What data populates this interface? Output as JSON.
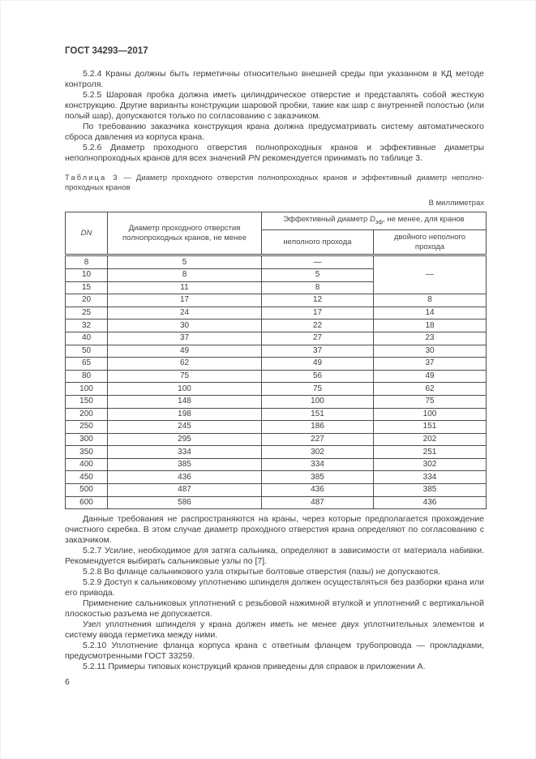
{
  "header": {
    "title": "ГОСТ 34293—2017"
  },
  "paragraphs_top": [
    "5.2.4 Краны должны быть герметичны относительно внешней среды при указанном в КД методе контроля.",
    "5.2.5 Шаровая пробка должна иметь цилиндрическое отверстие и представлять собой жесткую конструкцию. Другие варианты конструкции шаровой пробки, такие как шар с внутренней полостью (или полый шар), допускаются только по согласованию с заказчиком.",
    "По требованию заказчика конструкция крана должна предусматривать систему автоматического сброса давления из корпуса крана."
  ],
  "para_526": {
    "before": "5.2.6 Диаметр проходного отверстия полнопроходных кранов и эффективные диаметры неполнопроходных кранов для всех значений ",
    "italic": "PN",
    "after": " рекомендуется принимать по таблице 3."
  },
  "table": {
    "caption_label": "Таблица 3",
    "caption_sep": " — ",
    "caption_text": "Диаметр проходного отверстия полнопроходных кранов и эффективный диаметр неполно­проходных кранов",
    "units": "В миллиметрах",
    "headers": {
      "dn": "DN",
      "full_bore": "Диаметр проходного отверстия полнопроходных кранов, не менее",
      "eff_prefix": "Эффективный диаметр ",
      "eff_d": "D",
      "eff_sub": "эф",
      "eff_suffix": ", не менее, для кранов",
      "single_pass": "неполного прохода",
      "double_pass": "двойного неполного прохода"
    },
    "merged_double": {
      "value": "—",
      "rowspan": 3
    },
    "rows": [
      {
        "dn": "8",
        "bore": "5",
        "single": "—"
      },
      {
        "dn": "10",
        "bore": "8",
        "single": "5"
      },
      {
        "dn": "15",
        "bore": "11",
        "single": "8"
      },
      {
        "dn": "20",
        "bore": "17",
        "single": "12",
        "double": "8"
      },
      {
        "dn": "25",
        "bore": "24",
        "single": "17",
        "double": "14"
      },
      {
        "dn": "32",
        "bore": "30",
        "single": "22",
        "double": "18"
      },
      {
        "dn": "40",
        "bore": "37",
        "single": "27",
        "double": "23"
      },
      {
        "dn": "50",
        "bore": "49",
        "single": "37",
        "double": "30"
      },
      {
        "dn": "65",
        "bore": "62",
        "single": "49",
        "double": "37"
      },
      {
        "dn": "80",
        "bore": "75",
        "single": "56",
        "double": "49"
      },
      {
        "dn": "100",
        "bore": "100",
        "single": "75",
        "double": "62"
      },
      {
        "dn": "150",
        "bore": "148",
        "single": "100",
        "double": "75"
      },
      {
        "dn": "200",
        "bore": "198",
        "single": "151",
        "double": "100"
      },
      {
        "dn": "250",
        "bore": "245",
        "single": "186",
        "double": "151"
      },
      {
        "dn": "300",
        "bore": "295",
        "single": "227",
        "double": "202"
      },
      {
        "dn": "350",
        "bore": "334",
        "single": "302",
        "double": "251"
      },
      {
        "dn": "400",
        "bore": "385",
        "single": "334",
        "double": "302"
      },
      {
        "dn": "450",
        "bore": "436",
        "single": "385",
        "double": "334"
      },
      {
        "dn": "500",
        "bore": "487",
        "single": "436",
        "double": "385"
      },
      {
        "dn": "600",
        "bore": "586",
        "single": "487",
        "double": "436"
      }
    ]
  },
  "paragraphs_bottom": [
    "Данные требования не распространяются на краны, через которые предполагается прохождение очистного скребка. В этом случае диаметр проходного отверстия крана определяют по согласованию с заказчиком.",
    "5.2.7 Усилие, необходимое для затяга сальника, определяют в зависимости от материала набивки. Рекомендуется выбирать сальниковые узлы по [7].",
    "5.2.8 Во фланце сальникового узла открытые болтовые отверстия (пазы) не допускаются.",
    "5.2.9 Доступ к сальниковому уплотнению шпинделя должен осуществляться без разборки крана или его привода.",
    "Применение сальниковых уплотнений с резьбовой нажимной втулкой и уплотнений с вертикальной плоскостью разъема не допускается.",
    "Узел уплотнения шпинделя у крана должен иметь не менее двух уплотнительных элементов и систему ввода герметика между ними.",
    "5.2.10 Уплотнение фланца корпуса крана с ответным фланцем трубопровода — прокладками, предусмотренными ГОСТ 33259.",
    "5.2.11 Примеры типовых конструкций кранов приведены для справок в приложении А."
  ],
  "footer": {
    "page_number": "6"
  },
  "colors": {
    "text": "#3d3d3d",
    "border": "#4d4d4d",
    "background": "#ffffff"
  }
}
